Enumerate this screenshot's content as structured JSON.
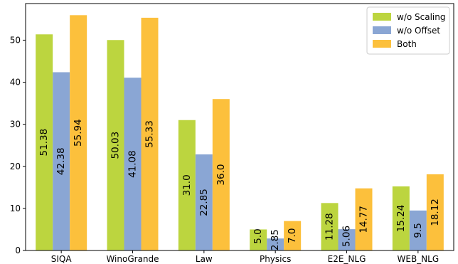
{
  "chart_data": {
    "type": "bar",
    "categories": [
      "SIQA",
      "WinoGrande",
      "Law",
      "Physics",
      "E2E_NLG",
      "WEB_NLG"
    ],
    "series": [
      {
        "name": "w/o Scaling",
        "values": [
          51.38,
          50.03,
          31.0,
          5.0,
          11.28,
          15.24
        ],
        "labels": [
          "51.38",
          "50.03",
          "31.0",
          "5.0",
          "11.28",
          "15.24"
        ],
        "color": "#bcd53f"
      },
      {
        "name": "w/o Offset",
        "values": [
          42.38,
          41.08,
          22.85,
          2.85,
          5.06,
          9.5
        ],
        "labels": [
          "42.38",
          "41.08",
          "22.85",
          "2.85",
          "5.06",
          "9.5"
        ],
        "color": "#8aa6d4"
      },
      {
        "name": "Both",
        "values": [
          55.94,
          55.33,
          36.0,
          7.0,
          14.77,
          18.12
        ],
        "labels": [
          "55.94",
          "55.33",
          "36.0",
          "7.0",
          "14.77",
          "18.12"
        ],
        "color": "#fcc03c"
      }
    ],
    "yticks": [
      0,
      10,
      20,
      30,
      40,
      50
    ],
    "ylim": [
      0,
      58.7
    ],
    "title": "",
    "xlabel": "",
    "ylabel": "",
    "legend_position": "top-right",
    "grid": false
  }
}
